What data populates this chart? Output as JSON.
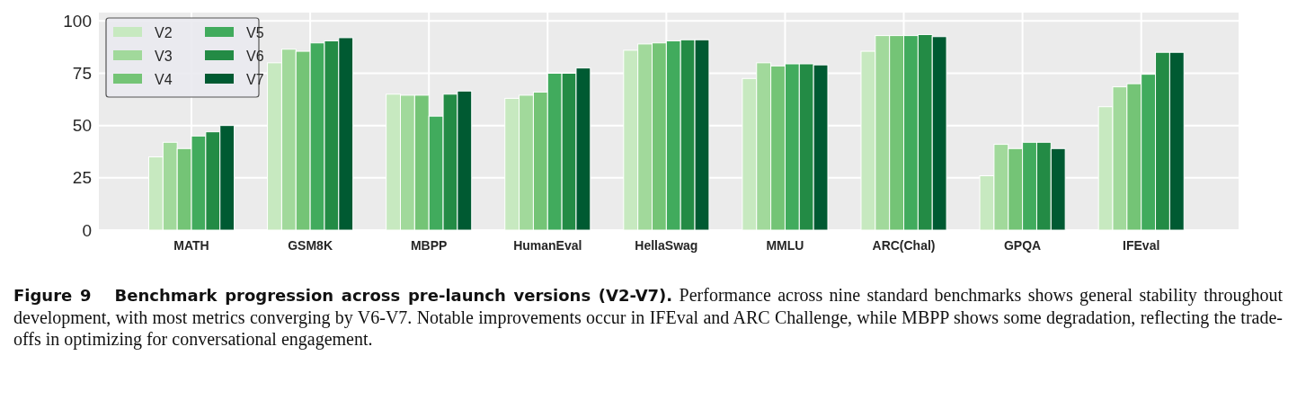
{
  "chart_data": {
    "type": "bar",
    "title": "Figure 9   Benchmark progression across pre-launch versions (V2-V7).",
    "annotations": [
      "Performance across nine standard benchmarks shows general stability throughout development, with most metrics converging by V6-V7. Notable improvements occur in IFEval and ARC Challenge, while MBPP shows some degradation, reflecting the trade-offs in optimizing for conversational engagement."
    ],
    "categories": [
      "MATH",
      "GSM8K",
      "MBPP",
      "HumanEval",
      "HellaSwag",
      "MMLU",
      "ARC(Chal)",
      "GPQA",
      "IFEval"
    ],
    "series": [
      {
        "name": "V2",
        "color": "#c7e9c0",
        "values": [
          35,
          80,
          65,
          63,
          86,
          72.5,
          85.5,
          26,
          59
        ]
      },
      {
        "name": "V3",
        "color": "#a1d99b",
        "values": [
          42,
          86.5,
          64.5,
          64.5,
          89,
          80,
          93,
          41,
          68.5
        ]
      },
      {
        "name": "V4",
        "color": "#74c476",
        "values": [
          39,
          85.5,
          64.5,
          66,
          89.5,
          78.5,
          93,
          39,
          70
        ]
      },
      {
        "name": "V5",
        "color": "#41ab5d",
        "values": [
          45,
          89.5,
          54.5,
          75,
          90.5,
          79.5,
          93,
          42,
          74.5
        ]
      },
      {
        "name": "V6",
        "color": "#238b45",
        "values": [
          47,
          90.5,
          65,
          75,
          91,
          79.5,
          93.5,
          42,
          85
        ]
      },
      {
        "name": "V7",
        "color": "#005a32",
        "values": [
          50,
          92,
          66.5,
          77.5,
          91,
          79,
          92.5,
          39,
          85
        ]
      }
    ],
    "ylim": [
      0,
      104
    ],
    "yticks": [
      0,
      25,
      50,
      75,
      100
    ],
    "grid": true,
    "legend": "top left"
  }
}
